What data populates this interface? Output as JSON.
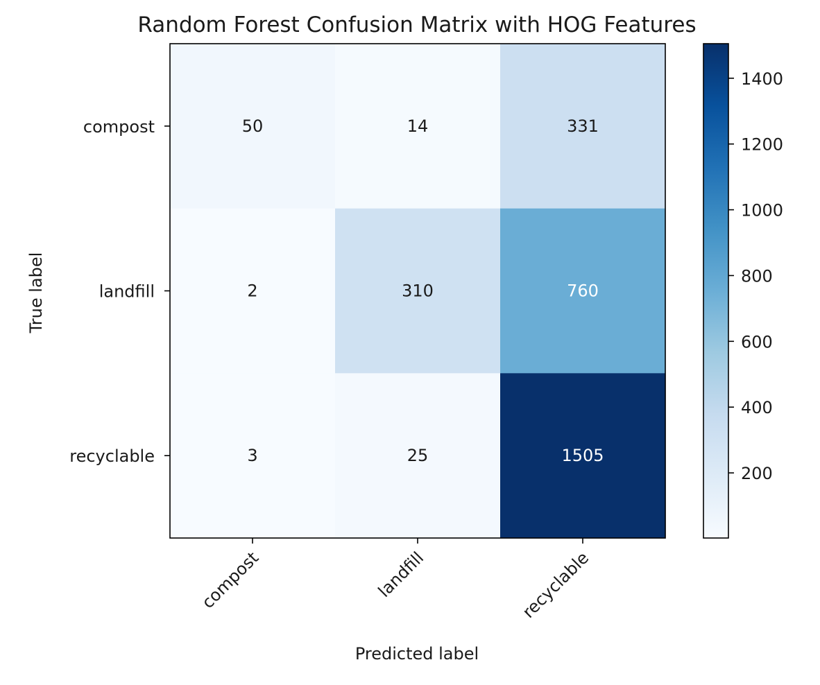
{
  "chart_data": {
    "type": "heatmap",
    "title": "Random Forest Confusion Matrix with HOG Features",
    "xlabel": "Predicted label",
    "ylabel": "True label",
    "x_categories": [
      "compost",
      "landfill",
      "recyclable"
    ],
    "y_categories": [
      "compost",
      "landfill",
      "recyclable"
    ],
    "values": [
      [
        50,
        14,
        331
      ],
      [
        2,
        310,
        760
      ],
      [
        3,
        25,
        1505
      ]
    ],
    "colormap": "Blues",
    "color_range": [
      2,
      1505
    ],
    "colorbar_ticks": [
      200,
      400,
      600,
      800,
      1000,
      1200,
      1400
    ],
    "grid": false
  }
}
